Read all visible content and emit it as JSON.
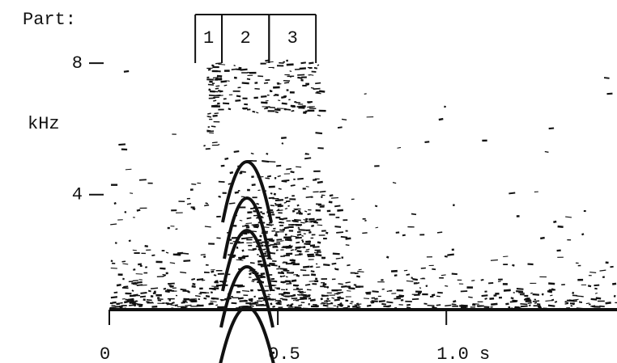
{
  "chart_data": {
    "type": "spectrogram",
    "parts_label": "Part:",
    "y_label": "kHz",
    "parts": [
      {
        "label": "1",
        "start": 0.255,
        "end": 0.334
      },
      {
        "label": "2",
        "start": 0.334,
        "end": 0.474
      },
      {
        "label": "3",
        "start": 0.474,
        "end": 0.613
      }
    ],
    "xlim": [
      0,
      1.48
    ],
    "xticks": [
      0,
      0.5,
      {
        "value": 1,
        "label": "1.0 s"
      }
    ],
    "ylim": [
      0.5,
      8.2
    ],
    "yticks": [
      4,
      8
    ]
  }
}
